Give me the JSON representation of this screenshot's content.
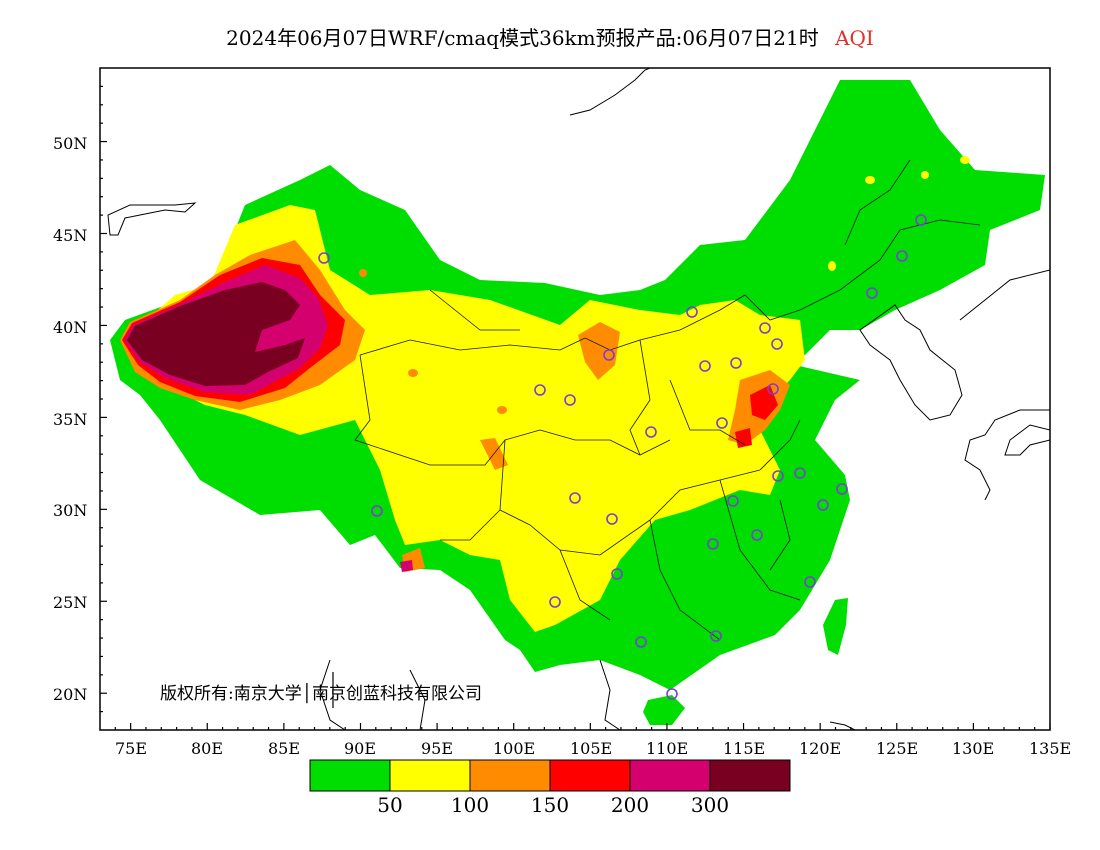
{
  "title": {
    "text": "2024年06月07日WRF/cmaq模式36km预报产品:06月07日21时",
    "variable": "AQI",
    "variable_color": "#e0302a"
  },
  "copyright": "版权所有:南京大学│南京创蓝科技有限公司",
  "axes": {
    "lon_ticks": [
      "75E",
      "80E",
      "85E",
      "90E",
      "95E",
      "100E",
      "105E",
      "110E",
      "115E",
      "120E",
      "125E",
      "130E",
      "135E"
    ],
    "lat_ticks": [
      "50N",
      "45N",
      "40N",
      "35N",
      "30N",
      "25N",
      "20N"
    ],
    "lon_range": [
      73,
      135
    ],
    "lat_range": [
      18,
      54
    ]
  },
  "legend": {
    "colors": [
      "#00dd00",
      "#ffff00",
      "#ff8c00",
      "#ff0000",
      "#d4006e",
      "#7a0022"
    ],
    "labels": [
      "50",
      "100",
      "150",
      "200",
      "300"
    ]
  },
  "colors": {
    "good": "#00dd00",
    "moderate": "#ffff00",
    "usg": "#ff8c00",
    "unhealthy": "#ff0000",
    "very_unhealthy": "#d4006e",
    "hazardous": "#7a0022",
    "station_marker": "#7b3fd6"
  }
}
